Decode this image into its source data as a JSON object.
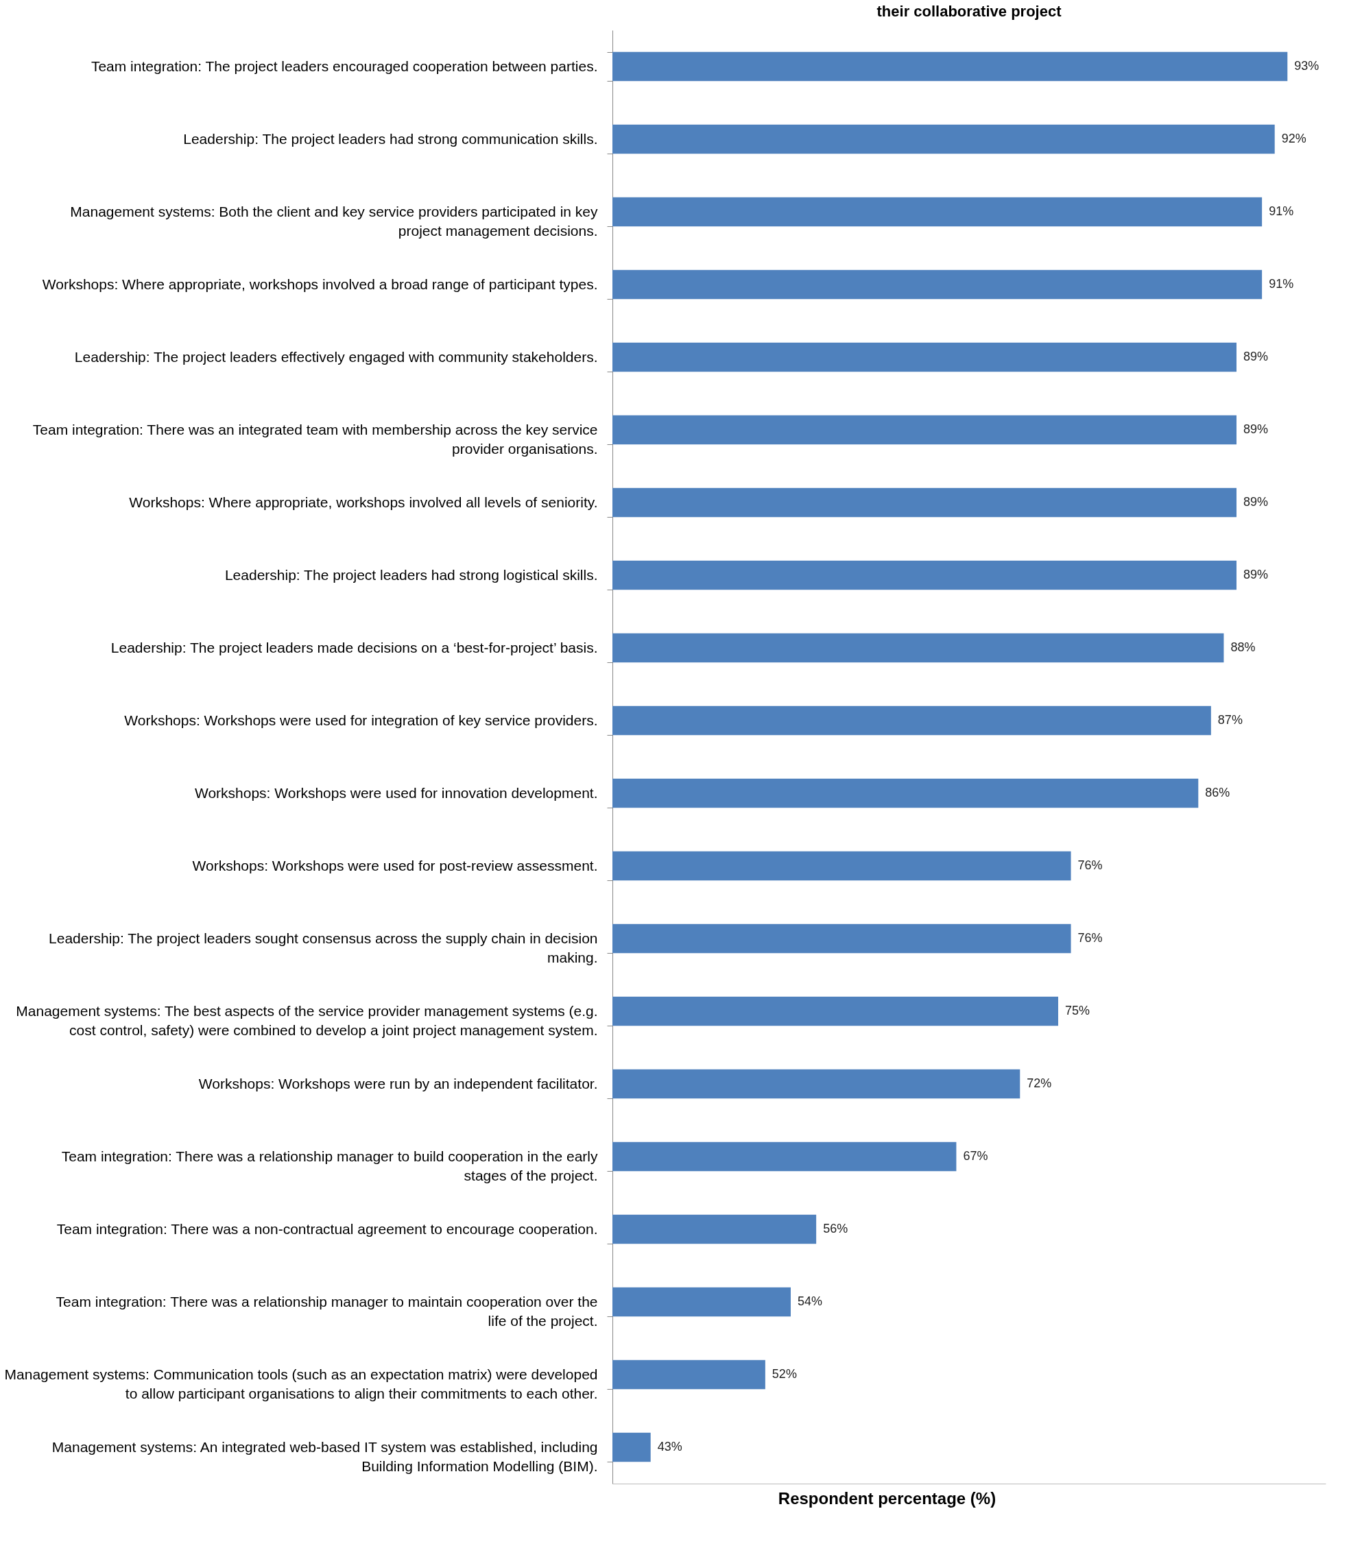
{
  "chart_data": {
    "type": "bar",
    "orientation": "horizontal",
    "title": "their collaborative project",
    "xlabel": "Respondent percentage (%)",
    "categories": [
      "Team integration: The project leaders encouraged cooperation between parties.",
      "Leadership: The project leaders had strong communication skills.",
      "Management systems: Both the client and key service providers participated in key project management decisions.",
      "Workshops: Where appropriate, workshops involved a broad range of participant types.",
      "Leadership: The project leaders effectively engaged with community stakeholders.",
      "Team integration: There was an integrated team with membership across the key service provider organisations.",
      "Workshops: Where appropriate, workshops involved all levels of seniority.",
      "Leadership: The project leaders had strong logistical skills.",
      "Leadership: The project leaders made decisions on a ‘best-for-project’ basis.",
      "Workshops: Workshops were used for integration of key service providers.",
      "Workshops: Workshops were used for innovation development.",
      "Workshops: Workshops were used for post-review assessment.",
      "Leadership: The project leaders sought consensus across the supply chain in decision making.",
      "Management systems: The best aspects of the service provider management systems (e.g. cost control, safety) were combined to develop a joint project management system.",
      "Workshops: Workshops were run by an independent facilitator.",
      "Team integration: There was a relationship manager to build cooperation in the early stages of the project.",
      "Team integration: There was a non-contractual agreement to encourage cooperation.",
      "Team integration: There was a relationship manager to maintain cooperation over the life of the project.",
      "Management systems: Communication tools (such as an expectation matrix) were developed to allow participant organisations to align their commitments to each other.",
      "Management systems: An integrated web-based IT system was established, including Building Information Modelling (BIM)."
    ],
    "values": [
      93,
      92,
      91,
      91,
      89,
      89,
      89,
      89,
      88,
      87,
      86,
      76,
      76,
      75,
      72,
      67,
      56,
      54,
      52,
      43
    ],
    "value_labels": [
      "93%",
      "92%",
      "91%",
      "91%",
      "89%",
      "89%",
      "89%",
      "89%",
      "88%",
      "87%",
      "86%",
      "76%",
      "76%",
      "75%",
      "72%",
      "67%",
      "56%",
      "54%",
      "52%",
      "43%"
    ],
    "color": "#4f81bd",
    "xlim": [
      40,
      96
    ],
    "tick_labels": "y",
    "grid": false
  }
}
